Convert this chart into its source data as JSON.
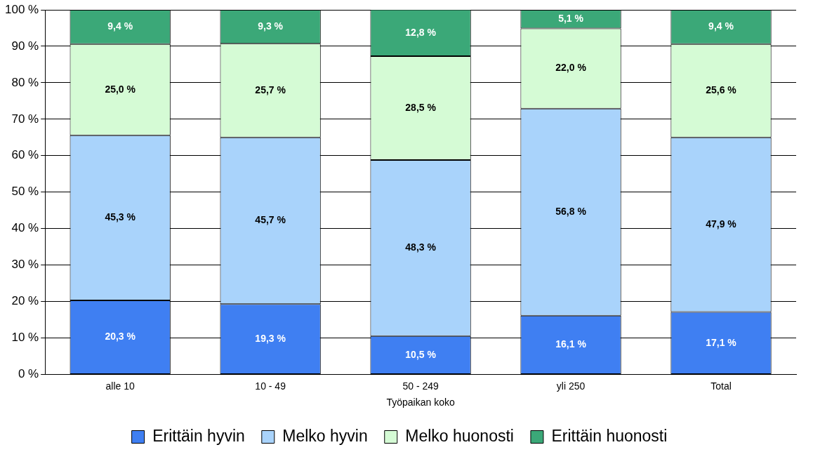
{
  "chart_data": {
    "type": "bar",
    "stacked": true,
    "xlabel": "Työpaikan koko",
    "categories": [
      "alle 10",
      "10 - 49",
      "50 - 249",
      "yli 250",
      "Total"
    ],
    "series": [
      {
        "name": "Erittäin hyvin",
        "color": "#3f7ff2",
        "values": [
          20.3,
          19.3,
          10.5,
          16.1,
          17.1
        ],
        "value_labels": [
          "20,3 %",
          "19,3 %",
          "10,5 %",
          "16,1 %",
          "17,1 %"
        ]
      },
      {
        "name": "Melko hyvin",
        "color": "#a9d3fb",
        "values": [
          45.3,
          45.7,
          48.3,
          56.8,
          47.9
        ],
        "value_labels": [
          "45,3 %",
          "45,7 %",
          "48,3 %",
          "56,8 %",
          "47,9 %"
        ]
      },
      {
        "name": "Melko huonosti",
        "color": "#d5fbd5",
        "values": [
          25.0,
          25.7,
          28.5,
          22.0,
          25.6
        ],
        "value_labels": [
          "25,0 %",
          "25,7 %",
          "28,5 %",
          "22,0 %",
          "25,6 %"
        ]
      },
      {
        "name": "Erittäin huonosti",
        "color": "#3ba878",
        "values": [
          9.4,
          9.3,
          12.8,
          5.1,
          9.4
        ],
        "value_labels": [
          "9,4 %",
          "9,3 %",
          "12,8 %",
          "5,1 %",
          "9,4 %"
        ]
      }
    ],
    "ylim": [
      0,
      100
    ],
    "yticks": [
      {
        "value": 0,
        "label": "0 %"
      },
      {
        "value": 10,
        "label": "10 %"
      },
      {
        "value": 20,
        "label": "20 %"
      },
      {
        "value": 30,
        "label": "30 %"
      },
      {
        "value": 40,
        "label": "40 %"
      },
      {
        "value": 50,
        "label": "50 %"
      },
      {
        "value": 60,
        "label": "60 %"
      },
      {
        "value": 70,
        "label": "70 %"
      },
      {
        "value": 80,
        "label": "80 %"
      },
      {
        "value": 90,
        "label": "90 %"
      },
      {
        "value": 100,
        "label": "100 %"
      }
    ],
    "grid": "y",
    "legend": "bottom"
  }
}
